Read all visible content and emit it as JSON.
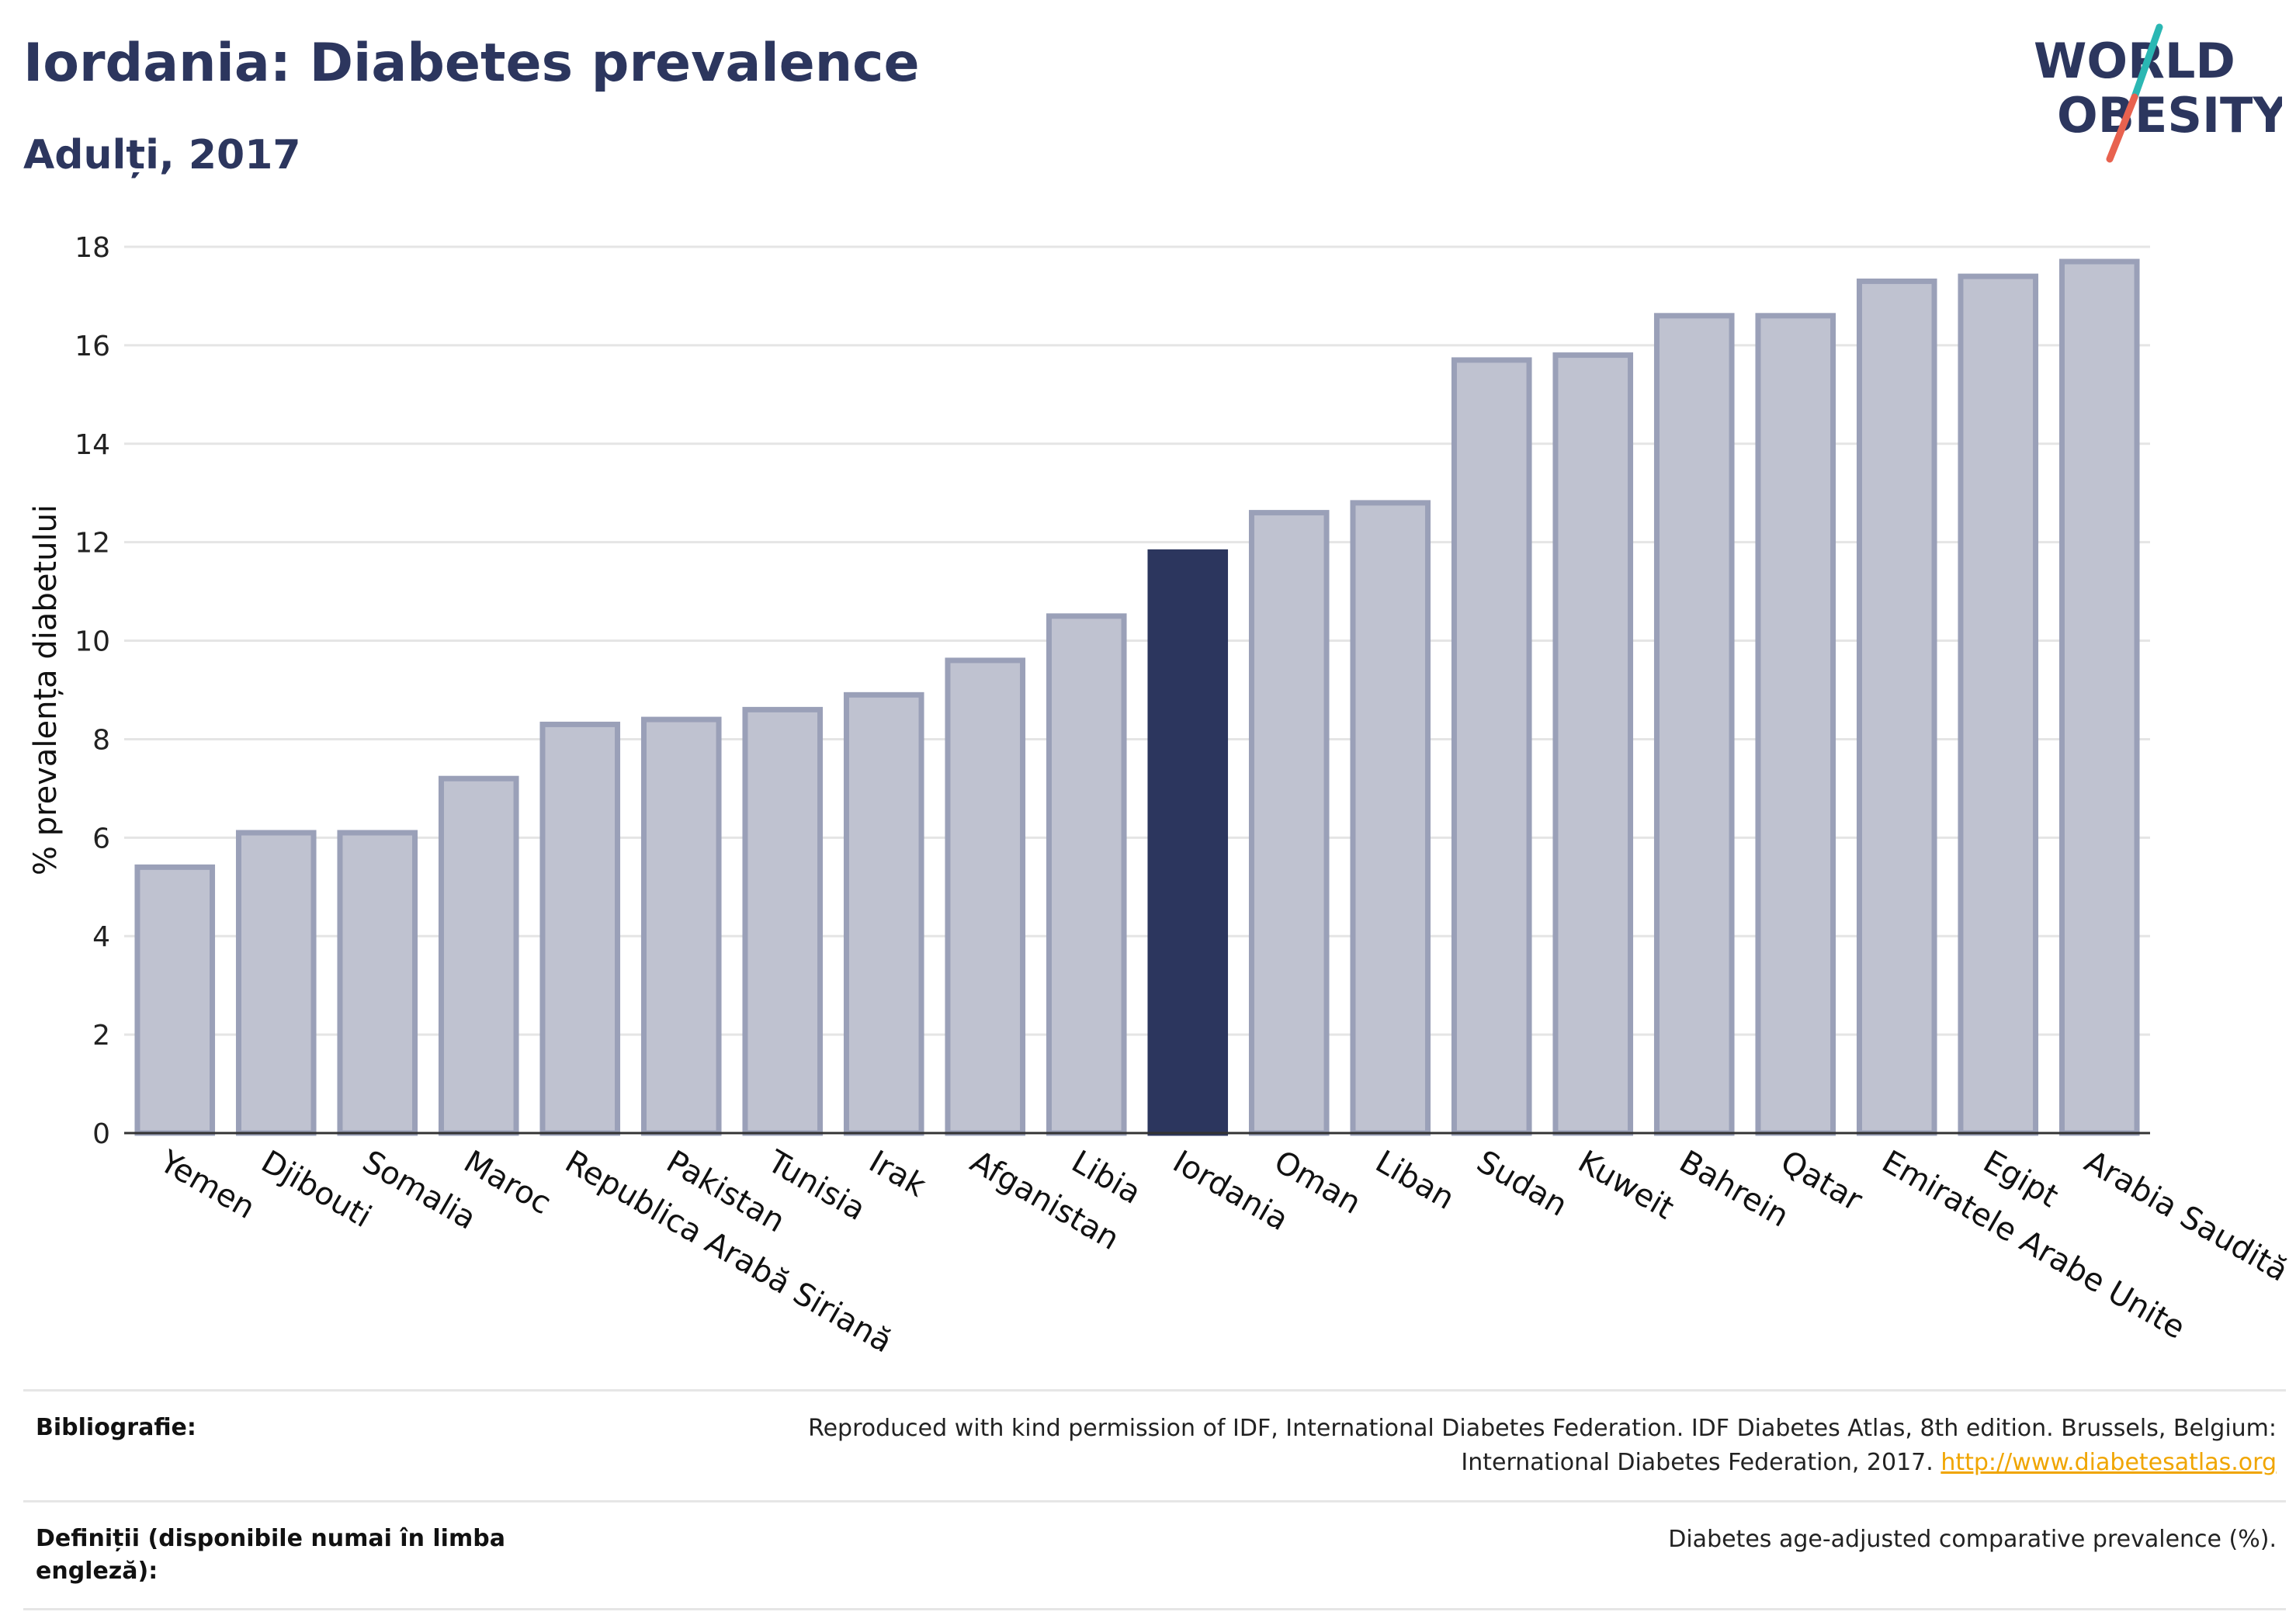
{
  "header": {
    "title": "Iordania: Diabetes prevalence",
    "subtitle": "Adulți, 2017"
  },
  "logo": {
    "line1": "WORLD",
    "line2": "OBESITY",
    "accent_colors": [
      "#2bb7b3",
      "#e8624f"
    ],
    "text_color": "#2c365e"
  },
  "colors": {
    "bar_default": "#bfc2d0",
    "bar_default_edge": "#9aa0b8",
    "bar_highlight": "#2c365e",
    "gridline": "#e5e5e5",
    "axis": "#333333"
  },
  "chart_data": {
    "type": "bar",
    "title": "Iordania: Diabetes prevalence",
    "subtitle": "Adulți, 2017",
    "xlabel": "",
    "ylabel": "% prevalența diabetului",
    "ylim": [
      0,
      18
    ],
    "yticks": [
      0,
      2,
      4,
      6,
      8,
      10,
      12,
      14,
      16,
      18
    ],
    "grid": true,
    "highlight": "Iordania",
    "categories": [
      "Yemen",
      "Djibouti",
      "Somalia",
      "Maroc",
      "Republica Arabă Siriană",
      "Pakistan",
      "Tunisia",
      "Irak",
      "Afganistan",
      "Libia",
      "Iordania",
      "Oman",
      "Liban",
      "Sudan",
      "Kuweit",
      "Bahrein",
      "Qatar",
      "Emiratele Arabe Unite",
      "Egipt",
      "Arabia Saudită"
    ],
    "values": [
      5.4,
      6.1,
      6.1,
      7.2,
      8.3,
      8.4,
      8.6,
      8.9,
      9.6,
      10.5,
      11.8,
      12.6,
      12.8,
      15.7,
      15.8,
      16.6,
      16.6,
      17.3,
      17.4,
      17.7
    ]
  },
  "footer": {
    "rows": [
      {
        "label": "Bibliografie:",
        "text_line1": "Reproduced with kind permission of IDF, International Diabetes Federation. IDF Diabetes Atlas, 8th edition. Brussels, Belgium:",
        "text_line2": "International Diabetes Federation, 2017.",
        "link": "http://www.diabetesatlas.org"
      },
      {
        "label": "Definiții (disponibile numai în limba engleză):",
        "text": "Diabetes age-adjusted comparative prevalence (%)."
      }
    ]
  }
}
